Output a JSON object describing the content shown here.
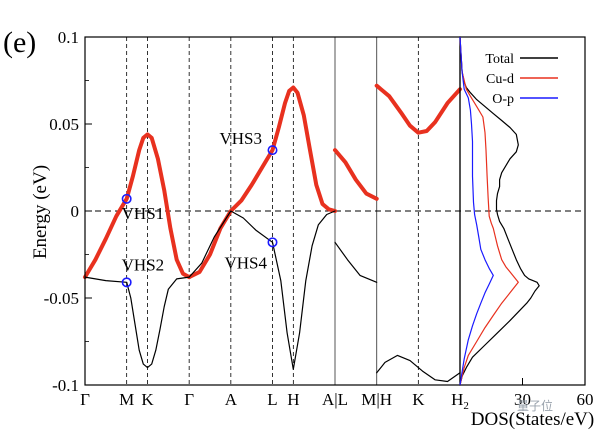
{
  "figure": {
    "panel_label": "(e)",
    "watermark": "量子位"
  },
  "chart_data": [
    {
      "type": "line",
      "panel": "band structure",
      "ylabel": "Energy (eV)",
      "ylim": [
        -0.1,
        0.1
      ],
      "y_ticks": [
        "-0.1",
        "-0.05",
        "0",
        "0.05",
        "0.1"
      ],
      "y_tick_values": [
        -0.1,
        -0.05,
        0,
        0.05,
        0.1
      ],
      "k_labels": [
        "Γ",
        "M",
        "K",
        "Γ",
        "A",
        "L",
        "H",
        "A|L",
        "M|H",
        "K",
        "H2"
      ],
      "k_positions": [
        0,
        1,
        1.5,
        2.5,
        3.5,
        4.5,
        5,
        6,
        7,
        8,
        9
      ],
      "fermi_level": 0,
      "series": [
        {
          "role": "flat band (thick red)",
          "color": "#e8311f",
          "segments": [
            {
              "x": [
                0,
                0.25,
                0.5,
                0.75,
                1,
                1.15,
                1.3,
                1.4,
                1.5,
                1.6,
                1.75,
                1.9,
                2.05,
                2.2,
                2.35,
                2.5
              ],
              "y": [
                -0.038,
                -0.028,
                -0.016,
                -0.003,
                0.007,
                0.02,
                0.035,
                0.042,
                0.044,
                0.042,
                0.03,
                0.012,
                -0.01,
                -0.028,
                -0.036,
                -0.038
              ]
            },
            {
              "x": [
                2.5,
                2.75,
                3.0,
                3.25,
                3.5,
                3.75,
                4.0,
                4.25,
                4.5,
                4.65,
                4.8,
                4.9,
                5.0,
                5.1,
                5.25,
                5.4,
                5.55,
                5.7,
                5.85,
                6.0
              ],
              "y": [
                -0.038,
                -0.035,
                -0.025,
                -0.01,
                0.0,
                0.006,
                0.015,
                0.025,
                0.035,
                0.048,
                0.062,
                0.069,
                0.071,
                0.068,
                0.055,
                0.035,
                0.015,
                0.004,
                0.001,
                0.0
              ]
            },
            {
              "x": [
                6.0,
                6.25,
                6.5,
                6.75,
                7.0
              ],
              "y": [
                0.035,
                0.028,
                0.018,
                0.01,
                0.007
              ]
            },
            {
              "x": [
                7.0,
                7.3,
                7.6,
                7.8,
                8.0,
                8.2,
                8.4,
                8.7,
                9.0
              ],
              "y": [
                0.072,
                0.066,
                0.056,
                0.049,
                0.045,
                0.046,
                0.051,
                0.062,
                0.07
              ]
            }
          ]
        },
        {
          "role": "dispersive band (thin black)",
          "color": "#000000",
          "segments": [
            {
              "x": [
                0,
                0.5,
                1,
                1.1,
                1.2,
                1.3,
                1.4,
                1.5,
                1.6,
                1.7,
                1.8,
                1.9,
                2.0,
                2.2,
                2.5
              ],
              "y": [
                -0.038,
                -0.04,
                -0.041,
                -0.05,
                -0.065,
                -0.08,
                -0.088,
                -0.09,
                -0.088,
                -0.08,
                -0.068,
                -0.055,
                -0.045,
                -0.039,
                -0.038
              ]
            },
            {
              "x": [
                2.5,
                2.8,
                3.1,
                3.5,
                3.8,
                4.1,
                4.5,
                4.7,
                4.85,
                5.0,
                5.15,
                5.3,
                5.45,
                5.6,
                5.8,
                6.0
              ],
              "y": [
                -0.038,
                -0.03,
                -0.015,
                0.0,
                -0.004,
                -0.011,
                -0.018,
                -0.04,
                -0.07,
                -0.091,
                -0.07,
                -0.04,
                -0.02,
                -0.008,
                -0.002,
                0.0
              ]
            },
            {
              "x": [
                6.0,
                6.3,
                6.6,
                7.0
              ],
              "y": [
                -0.018,
                -0.028,
                -0.037,
                -0.041
              ]
            },
            {
              "x": [
                7.0,
                7.2,
                7.5,
                7.8,
                8.1,
                8.4,
                8.7,
                9.0
              ],
              "y": [
                -0.093,
                -0.087,
                -0.083,
                -0.086,
                -0.092,
                -0.097,
                -0.098,
                -0.093
              ]
            }
          ]
        }
      ],
      "annotations": [
        {
          "label": "VHS1",
          "x": 1.0,
          "y": 0.007
        },
        {
          "label": "VHS2",
          "x": 1.0,
          "y": -0.041
        },
        {
          "label": "VHS3",
          "x": 4.5,
          "y": 0.035
        },
        {
          "label": "VHS4",
          "x": 4.5,
          "y": -0.018
        }
      ],
      "marker_color": "#1a1aff"
    },
    {
      "type": "line",
      "panel": "density of states",
      "xlabel": "DOS(States/eV)",
      "xlim": [
        0,
        60
      ],
      "x_ticks": [
        "30",
        "60"
      ],
      "x_tick_values": [
        30,
        60
      ],
      "ylim": [
        -0.1,
        0.1
      ],
      "legend": {
        "position": "top-right",
        "entries": [
          "Total",
          "Cu-d",
          "O-p"
        ]
      },
      "series": [
        {
          "name": "Total",
          "color": "#000000",
          "x": [
            0,
            0.5,
            1,
            2,
            3,
            5,
            8,
            12,
            16,
            20,
            24,
            27,
            28,
            27,
            24,
            22,
            20,
            19,
            19,
            18,
            17.5,
            17.5,
            18,
            19,
            21,
            23,
            25,
            27,
            29,
            31,
            33,
            35,
            37,
            38,
            36,
            34,
            32,
            28,
            24,
            18,
            12,
            6,
            3,
            1,
            0
          ],
          "y": [
            0.1,
            0.09,
            0.08,
            0.074,
            0.071,
            0.068,
            0.064,
            0.06,
            0.056,
            0.052,
            0.048,
            0.044,
            0.038,
            0.034,
            0.03,
            0.026,
            0.022,
            0.018,
            0.014,
            0.01,
            0.006,
            0.001,
            -0.002,
            -0.006,
            -0.01,
            -0.016,
            -0.022,
            -0.028,
            -0.033,
            -0.037,
            -0.039,
            -0.04,
            -0.041,
            -0.043,
            -0.046,
            -0.05,
            -0.053,
            -0.058,
            -0.063,
            -0.07,
            -0.077,
            -0.084,
            -0.09,
            -0.095,
            -0.1
          ]
        },
        {
          "name": "Cu-d",
          "color": "#e8311f",
          "x": [
            0,
            1,
            3,
            5,
            7,
            9,
            11,
            12,
            12.5,
            13,
            13.5,
            14,
            15,
            16,
            17,
            18,
            19,
            20,
            22,
            24,
            26,
            28,
            24,
            20,
            16,
            12,
            8,
            4,
            2,
            0
          ],
          "y": [
            0.1,
            0.08,
            0.07,
            0.066,
            0.062,
            0.058,
            0.054,
            0.045,
            0.035,
            0.02,
            0.008,
            -0.003,
            -0.007,
            -0.01,
            -0.015,
            -0.02,
            -0.024,
            -0.028,
            -0.032,
            -0.035,
            -0.038,
            -0.041,
            -0.047,
            -0.053,
            -0.06,
            -0.067,
            -0.075,
            -0.083,
            -0.09,
            -0.1
          ]
        },
        {
          "name": "O-p",
          "color": "#1a1aff",
          "x": [
            0,
            1,
            2,
            4,
            5,
            5.5,
            6,
            6,
            6.5,
            7,
            8,
            9,
            10,
            12,
            14,
            16,
            14,
            12,
            10,
            8,
            6,
            4,
            2,
            0
          ],
          "y": [
            0.1,
            0.08,
            0.07,
            0.065,
            0.058,
            0.05,
            0.04,
            0.02,
            0.005,
            -0.002,
            -0.008,
            -0.015,
            -0.022,
            -0.028,
            -0.033,
            -0.037,
            -0.042,
            -0.047,
            -0.053,
            -0.059,
            -0.066,
            -0.074,
            -0.085,
            -0.1
          ]
        }
      ]
    }
  ]
}
